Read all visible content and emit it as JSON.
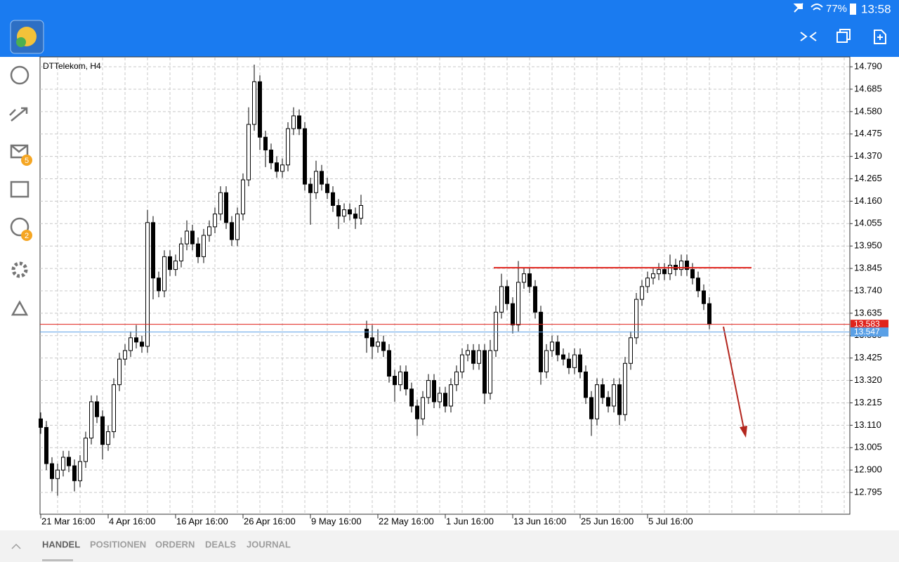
{
  "status_bar": {
    "battery": "77%",
    "time": "13:58"
  },
  "sidebar": {
    "mail_badge": "5",
    "chat_badge": "2"
  },
  "tabs": [
    "HANDEL",
    "POSITIONEN",
    "ORDERN",
    "DEALS",
    "JOURNAL"
  ],
  "chart_data": {
    "type": "candlestick",
    "title": "DTTelekom, H4",
    "up_color": "#ffffff",
    "down_color": "#000000",
    "categories": [
      "21 Mar 16:00",
      null,
      null,
      null,
      null,
      null,
      null,
      null,
      null,
      null,
      null,
      null,
      "4 Apr 16:00",
      null,
      null,
      null,
      null,
      null,
      null,
      null,
      null,
      null,
      null,
      null,
      "16 Apr 16:00",
      null,
      null,
      null,
      null,
      null,
      null,
      null,
      null,
      null,
      null,
      null,
      "26 Apr 16:00",
      null,
      null,
      null,
      null,
      null,
      null,
      null,
      null,
      null,
      null,
      null,
      "9 May 16:00",
      null,
      null,
      null,
      null,
      null,
      null,
      null,
      null,
      null,
      null,
      null,
      "22 May 16:00",
      null,
      null,
      null,
      null,
      null,
      null,
      null,
      null,
      null,
      null,
      null,
      "1 Jun 16:00",
      null,
      null,
      null,
      null,
      null,
      null,
      null,
      null,
      null,
      null,
      null,
      "13 Jun 16:00",
      null,
      null,
      null,
      null,
      null,
      null,
      null,
      null,
      null,
      null,
      null,
      "25 Jun 16:00",
      null,
      null,
      null,
      null,
      null,
      null,
      null,
      null,
      null,
      null,
      null,
      "5 Jul 16:00",
      null,
      null,
      null,
      null,
      null,
      null,
      null,
      null,
      null,
      null,
      null
    ],
    "open": [
      13.14,
      13.1,
      12.93,
      12.86,
      12.9,
      12.96,
      12.92,
      12.85,
      12.94,
      13.05,
      13.22,
      13.15,
      13.02,
      13.08,
      13.3,
      13.42,
      13.46,
      13.52,
      13.5,
      13.48,
      14.06,
      13.8,
      13.74,
      13.9,
      13.84,
      13.88,
      13.96,
      14.02,
      13.96,
      13.9,
      14.0,
      14.04,
      14.1,
      14.2,
      14.06,
      13.98,
      14.1,
      14.26,
      14.52,
      14.72,
      14.46,
      14.4,
      14.34,
      14.3,
      14.33,
      14.5,
      14.56,
      14.5,
      14.24,
      14.2,
      14.3,
      14.24,
      14.2,
      14.14,
      14.09,
      14.12,
      14.1,
      14.08,
      13.56,
      13.52,
      13.48,
      13.5,
      13.46,
      13.34,
      13.3,
      13.36,
      13.28,
      13.2,
      13.14,
      13.24,
      13.32,
      13.22,
      13.26,
      13.2,
      13.3,
      13.36,
      13.44,
      13.46,
      13.4,
      13.46,
      13.26,
      13.46,
      13.64,
      13.76,
      13.68,
      13.58,
      13.78,
      13.82,
      13.76,
      13.64,
      13.36,
      13.46,
      13.5,
      13.44,
      13.42,
      13.38,
      13.44,
      13.36,
      13.24,
      13.14,
      13.3,
      13.24,
      13.2,
      13.3,
      13.16,
      13.4,
      13.52,
      13.7,
      13.76,
      13.8,
      13.82,
      13.84,
      13.82,
      13.86,
      13.84,
      13.88,
      13.84,
      13.8,
      13.74,
      13.68
    ],
    "high": [
      13.17,
      13.13,
      12.96,
      12.93,
      12.99,
      12.99,
      12.95,
      12.97,
      13.08,
      13.25,
      13.25,
      13.18,
      13.11,
      13.33,
      13.45,
      13.49,
      13.55,
      13.58,
      13.53,
      14.12,
      14.09,
      13.83,
      13.93,
      13.93,
      13.91,
      13.99,
      14.07,
      14.05,
      13.99,
      14.03,
      14.07,
      14.13,
      14.23,
      14.23,
      14.09,
      14.13,
      14.29,
      14.6,
      14.8,
      14.75,
      14.49,
      14.43,
      14.37,
      14.36,
      14.53,
      14.6,
      14.59,
      14.53,
      14.27,
      14.35,
      14.33,
      14.27,
      14.23,
      14.17,
      14.15,
      14.15,
      14.13,
      14.19,
      13.6,
      13.58,
      13.56,
      13.53,
      13.49,
      13.37,
      13.39,
      13.39,
      13.31,
      13.23,
      13.27,
      13.35,
      13.35,
      13.29,
      13.29,
      13.33,
      13.39,
      13.47,
      13.49,
      13.49,
      13.49,
      13.49,
      13.51,
      13.67,
      13.82,
      13.79,
      13.71,
      13.88,
      13.85,
      13.85,
      13.79,
      13.67,
      13.49,
      13.53,
      13.53,
      13.47,
      13.45,
      13.47,
      13.47,
      13.39,
      13.27,
      13.33,
      13.33,
      13.27,
      13.33,
      13.33,
      13.43,
      13.55,
      13.73,
      13.79,
      13.83,
      13.85,
      13.87,
      13.87,
      13.91,
      13.89,
      13.91,
      13.91,
      13.87,
      13.83,
      13.77,
      13.71
    ],
    "low": [
      13.07,
      12.9,
      12.8,
      12.78,
      12.87,
      12.89,
      12.8,
      12.82,
      12.91,
      13.02,
      13.12,
      12.95,
      12.99,
      13.05,
      13.27,
      13.39,
      13.43,
      13.47,
      13.45,
      13.45,
      13.7,
      13.71,
      13.71,
      13.81,
      13.81,
      13.85,
      13.93,
      13.93,
      13.87,
      13.87,
      13.97,
      14.01,
      14.07,
      14.03,
      13.95,
      13.95,
      14.07,
      14.23,
      14.49,
      14.4,
      14.32,
      14.31,
      14.27,
      14.27,
      14.3,
      14.47,
      14.47,
      14.21,
      14.05,
      14.17,
      14.21,
      14.17,
      14.11,
      14.03,
      14.06,
      14.07,
      14.03,
      14.05,
      13.45,
      13.42,
      13.45,
      13.43,
      13.31,
      13.22,
      13.27,
      13.25,
      13.17,
      13.06,
      13.11,
      13.21,
      13.19,
      13.19,
      13.17,
      13.17,
      13.27,
      13.33,
      13.41,
      13.37,
      13.37,
      13.21,
      13.23,
      13.43,
      13.61,
      13.65,
      13.54,
      13.55,
      13.75,
      13.73,
      13.61,
      13.3,
      13.33,
      13.43,
      13.41,
      13.39,
      13.35,
      13.35,
      13.33,
      13.21,
      13.06,
      13.11,
      13.21,
      13.17,
      13.17,
      13.11,
      13.13,
      13.37,
      13.49,
      13.67,
      13.73,
      13.77,
      13.79,
      13.79,
      13.79,
      13.81,
      13.81,
      13.81,
      13.77,
      13.71,
      13.65,
      13.56
    ],
    "close": [
      13.1,
      12.93,
      12.86,
      12.9,
      12.96,
      12.92,
      12.85,
      12.94,
      13.05,
      13.22,
      13.15,
      13.02,
      13.08,
      13.3,
      13.42,
      13.46,
      13.52,
      13.5,
      13.48,
      14.06,
      13.8,
      13.74,
      13.9,
      13.84,
      13.88,
      13.96,
      14.02,
      13.96,
      13.9,
      14.0,
      14.04,
      14.1,
      14.2,
      14.06,
      13.98,
      14.1,
      14.26,
      14.52,
      14.72,
      14.46,
      14.4,
      14.34,
      14.3,
      14.33,
      14.5,
      14.56,
      14.5,
      14.24,
      14.2,
      14.3,
      14.24,
      14.2,
      14.14,
      14.09,
      14.12,
      14.1,
      14.08,
      14.14,
      13.52,
      13.48,
      13.5,
      13.46,
      13.34,
      13.3,
      13.36,
      13.28,
      13.2,
      13.14,
      13.24,
      13.32,
      13.22,
      13.26,
      13.2,
      13.3,
      13.36,
      13.44,
      13.46,
      13.4,
      13.46,
      13.26,
      13.46,
      13.64,
      13.76,
      13.68,
      13.58,
      13.78,
      13.82,
      13.76,
      13.64,
      13.36,
      13.46,
      13.5,
      13.44,
      13.42,
      13.38,
      13.44,
      13.36,
      13.24,
      13.14,
      13.3,
      13.24,
      13.2,
      13.3,
      13.16,
      13.4,
      13.52,
      13.7,
      13.76,
      13.8,
      13.82,
      13.84,
      13.82,
      13.86,
      13.84,
      13.88,
      13.84,
      13.8,
      13.74,
      13.68,
      13.583
    ],
    "ylim": [
      12.693,
      14.833
    ],
    "yticks": [
      12.795,
      {
        "value": 12.9,
        "label": "12.900"
      },
      13.005,
      {
        "value": 13.11,
        "label": "13.110"
      },
      13.215,
      {
        "value": 13.32,
        "label": "13.320"
      },
      13.425,
      {
        "value": 13.53,
        "label": "13.530"
      },
      13.635,
      {
        "value": 13.74,
        "label": "13.740"
      },
      13.845,
      {
        "value": 13.95,
        "label": "13.950"
      },
      14.055,
      {
        "value": 14.16,
        "label": "14.160"
      },
      14.265,
      {
        "value": 14.37,
        "label": "14.370"
      },
      14.475,
      {
        "value": 14.58,
        "label": "14.580"
      },
      14.685,
      {
        "value": 14.79,
        "label": "14.790"
      }
    ],
    "grid": true,
    "trend_line": {
      "value": 13.848,
      "color": "#e0231c"
    },
    "price_lines": [
      {
        "value": 13.583,
        "color": "#e0231c"
      },
      {
        "value": 13.547,
        "color": "#5aa0e6"
      }
    ]
  }
}
